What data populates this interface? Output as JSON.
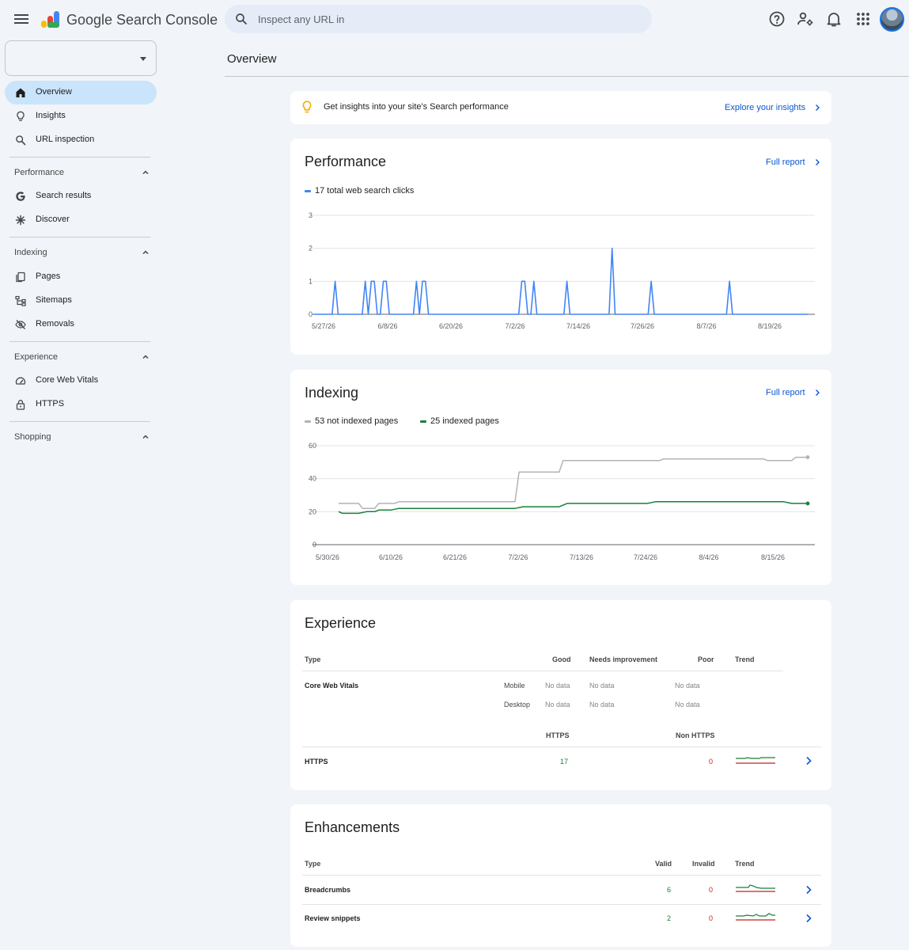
{
  "header": {
    "app_name": "Google Search Console",
    "search_placeholder": "Inspect any URL in",
    "icons": [
      "menu-icon",
      "search-console-logo",
      "search-icon",
      "help-icon",
      "manage-users-icon",
      "notifications-icon",
      "apps-icon",
      "account-avatar"
    ]
  },
  "sidebar": {
    "property_value": "",
    "top_items": [
      {
        "label": "Overview",
        "icon": "home-icon",
        "active": true
      },
      {
        "label": "Insights",
        "icon": "lightbulb-icon"
      },
      {
        "label": "URL inspection",
        "icon": "search-icon"
      }
    ],
    "sections": [
      {
        "title": "Performance",
        "items": [
          {
            "label": "Search results",
            "icon": "google-g-icon"
          },
          {
            "label": "Discover",
            "icon": "asterisk-icon"
          }
        ]
      },
      {
        "title": "Indexing",
        "items": [
          {
            "label": "Pages",
            "icon": "pages-icon"
          },
          {
            "label": "Sitemaps",
            "icon": "sitemap-icon"
          },
          {
            "label": "Removals",
            "icon": "hidden-eye-icon"
          }
        ]
      },
      {
        "title": "Experience",
        "items": [
          {
            "label": "Core Web Vitals",
            "icon": "speedometer-icon"
          },
          {
            "label": "HTTPS",
            "icon": "lock-icon"
          }
        ]
      },
      {
        "title": "Shopping",
        "items": []
      }
    ]
  },
  "main": {
    "title": "Overview",
    "insights_banner": {
      "text": "Get insights into your site's Search performance",
      "link": "Explore your insights",
      "icon": "lightbulb-icon"
    },
    "performance": {
      "title": "Performance",
      "link": "Full report",
      "legend": "17 total web search clicks",
      "color": "#4285f4"
    },
    "indexing": {
      "title": "Indexing",
      "link": "Full report",
      "legend_not_indexed": "53 not indexed pages",
      "legend_indexed": "25 indexed pages",
      "color_not_indexed": "#b0b3b8",
      "color_indexed": "#188038"
    },
    "experience": {
      "title": "Experience",
      "headers": {
        "type": "Type",
        "good": "Good",
        "needs": "Needs improvement",
        "poor": "Poor",
        "trend": "Trend"
      },
      "cwv": {
        "label": "Core Web Vitals",
        "rows": [
          {
            "device": "Mobile",
            "good": "No data",
            "needs": "No data",
            "poor": "No data"
          },
          {
            "device": "Desktop",
            "good": "No data",
            "needs": "No data",
            "poor": "No data"
          }
        ]
      },
      "https_headers": {
        "https": "HTTPS",
        "non_https": "Non HTTPS"
      },
      "https_row": {
        "label": "HTTPS",
        "https": "17",
        "non_https": "0"
      }
    },
    "enhancements": {
      "title": "Enhancements",
      "headers": {
        "type": "Type",
        "valid": "Valid",
        "invalid": "Invalid",
        "trend": "Trend"
      },
      "rows": [
        {
          "label": "Breadcrumbs",
          "valid": "6",
          "invalid": "0"
        },
        {
          "label": "Review snippets",
          "valid": "2",
          "invalid": "0"
        }
      ]
    }
  },
  "chart_data": [
    {
      "type": "line",
      "title": "",
      "series": [
        {
          "name": "17 total web search clicks",
          "values": [
            0,
            0,
            0,
            0,
            0,
            0,
            0,
            1,
            0,
            0,
            0,
            0,
            0,
            0,
            0,
            0,
            0,
            1,
            0,
            1,
            1,
            0,
            0,
            1,
            1,
            0,
            0,
            0,
            0,
            0,
            0,
            0,
            0,
            0,
            1,
            0,
            1,
            1,
            0,
            0,
            0,
            0,
            0,
            0,
            0,
            0,
            0,
            0,
            0,
            0,
            0,
            0,
            0,
            0,
            0,
            0,
            0,
            0,
            0,
            0,
            0,
            0,
            0,
            0,
            0,
            0,
            0,
            0,
            0,
            1,
            1,
            0,
            0,
            1,
            0,
            0,
            0,
            0,
            0,
            0,
            0,
            0,
            0,
            0,
            1,
            0,
            0,
            0,
            0,
            0,
            0,
            0,
            0,
            0,
            0,
            0,
            0,
            0,
            0,
            2,
            0,
            0,
            0,
            0,
            0,
            0,
            0,
            0,
            0,
            0,
            0,
            0,
            1,
            0,
            0,
            0,
            0,
            0,
            0,
            0,
            0,
            0,
            0,
            0,
            0,
            0,
            0,
            0,
            0,
            0,
            0,
            0,
            0,
            0,
            0,
            0,
            0,
            0,
            1,
            0,
            0,
            0,
            0,
            0,
            0,
            0,
            0,
            0,
            0,
            0,
            0,
            0,
            0,
            0,
            0,
            0,
            0,
            0,
            0,
            0,
            0,
            0,
            0,
            0,
            0
          ]
        }
      ],
      "x_start": "5/27/26",
      "x_ticks": [
        "5/27/26",
        "6/8/26",
        "6/20/26",
        "7/2/26",
        "7/14/26",
        "7/26/26",
        "8/7/26",
        "8/19/26"
      ],
      "ylim": [
        0,
        3
      ],
      "y_ticks": [
        "0",
        "1",
        "2",
        "3"
      ],
      "grid": true,
      "legend": "top-left"
    },
    {
      "type": "line",
      "title": "",
      "x_ticks": [
        "5/30/26",
        "6/10/26",
        "6/21/26",
        "7/2/26",
        "7/13/26",
        "7/24/26",
        "8/4/26",
        "8/15/26"
      ],
      "ylim": [
        0,
        60
      ],
      "y_ticks": [
        "0",
        "20",
        "40",
        "60"
      ],
      "grid": true,
      "legend": "top-left",
      "series": [
        {
          "name": "53 not indexed pages",
          "points": [
            [
              0,
              25
            ],
            [
              5,
              25
            ],
            [
              6,
              22
            ],
            [
              9,
              22
            ],
            [
              10,
              25
            ],
            [
              14,
              25
            ],
            [
              15,
              26
            ],
            [
              44,
              26
            ],
            [
              45,
              44
            ],
            [
              55,
              44
            ],
            [
              56,
              51
            ],
            [
              80,
              51
            ],
            [
              81,
              52
            ],
            [
              106,
              52
            ],
            [
              107,
              51
            ],
            [
              113,
              51
            ],
            [
              114,
              53
            ],
            [
              117,
              53
            ]
          ]
        },
        {
          "name": "25 indexed pages",
          "points": [
            [
              0,
              20
            ],
            [
              1,
              19
            ],
            [
              5,
              19
            ],
            [
              7,
              20
            ],
            [
              9,
              20
            ],
            [
              10,
              21
            ],
            [
              13,
              21
            ],
            [
              15,
              22
            ],
            [
              44,
              22
            ],
            [
              46,
              23
            ],
            [
              55,
              23
            ],
            [
              57,
              25
            ],
            [
              77,
              25
            ],
            [
              79,
              26
            ],
            [
              111,
              26
            ],
            [
              113,
              25
            ],
            [
              117,
              25
            ]
          ]
        }
      ]
    }
  ]
}
